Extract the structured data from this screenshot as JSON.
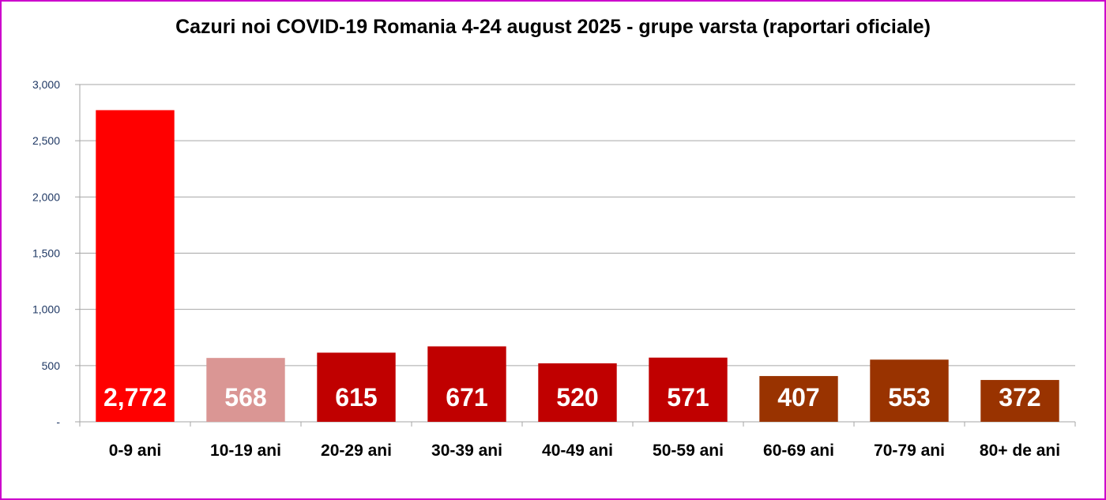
{
  "chart_data": {
    "type": "bar",
    "title": "Cazuri noi COVID-19 Romania 4-24 august 2025  - grupe varsta (raportari oficiale)",
    "xlabel": "",
    "ylabel": "",
    "categories": [
      "0-9 ani",
      "10-19 ani",
      "20-29 ani",
      "30-39 ani",
      "40-49 ani",
      "50-59 ani",
      "60-69 ani",
      "70-79 ani",
      "80+ de ani"
    ],
    "values": [
      2772,
      568,
      615,
      671,
      520,
      571,
      407,
      553,
      372
    ],
    "data_labels": [
      "2,772",
      "568",
      "615",
      "671",
      "520",
      "571",
      "407",
      "553",
      "372"
    ],
    "bar_colors": [
      "#ff0000",
      "#da9694",
      "#c00000",
      "#c00000",
      "#c00000",
      "#c00000",
      "#993300",
      "#993300",
      "#993300"
    ],
    "ylim": [
      0,
      3000
    ],
    "yticks": [
      0,
      500,
      1000,
      1500,
      2000,
      2500,
      3000
    ],
    "ytick_labels": [
      "-",
      "500",
      "1,000",
      "1,500",
      "2,000",
      "2,500",
      "3,000"
    ],
    "grid": true,
    "legend": "none"
  },
  "frame_color": "#cc00cc"
}
